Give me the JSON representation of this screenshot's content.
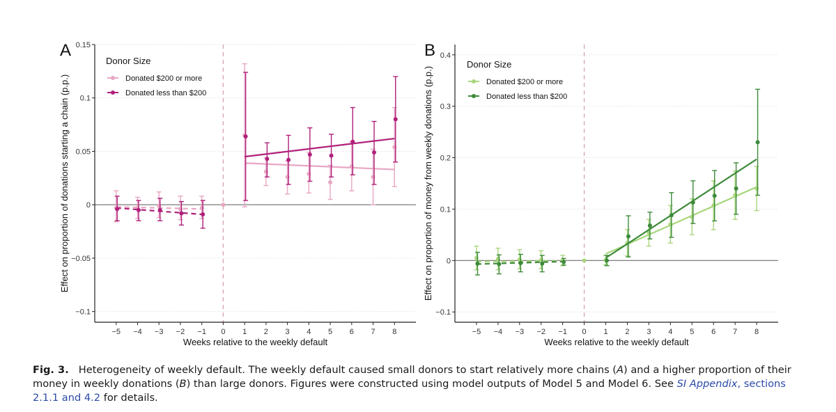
{
  "chart_data": [
    {
      "panel": "A",
      "type": "line",
      "legend_title": "Donor Size",
      "xlabel": "Weeks relative to the weekly default",
      "ylabel": "Effect on proportion of donations starting a chain (p.p.)",
      "x_ticks": [
        -5,
        -4,
        -3,
        -2,
        -1,
        0,
        1,
        2,
        3,
        4,
        5,
        6,
        7,
        8
      ],
      "y_ticks": [
        -0.1,
        -0.05,
        0,
        0.05,
        0.1,
        0.15
      ],
      "y_tick_labels": [
        "−0.1",
        "−0.05",
        "0",
        "0.05",
        "0.1",
        "0.15"
      ],
      "xlim": [
        -6,
        9
      ],
      "ylim": [
        -0.11,
        0.15
      ],
      "default_week": 0,
      "series": [
        {
          "name": "Donated $200 or more",
          "color": "#e8a6c4",
          "points": [
            {
              "x": -5,
              "y": -0.003,
              "lo": -0.016,
              "hi": 0.013
            },
            {
              "x": -4,
              "y": -0.003,
              "lo": -0.013,
              "hi": 0.007
            },
            {
              "x": -3,
              "y": -0.001,
              "lo": -0.012,
              "hi": 0.012
            },
            {
              "x": -2,
              "y": -0.004,
              "lo": -0.014,
              "hi": 0.008
            },
            {
              "x": -1,
              "y": -0.003,
              "lo": -0.013,
              "hi": 0.008
            },
            {
              "x": 0,
              "y": 0,
              "lo": 0,
              "hi": 0
            },
            {
              "x": 1,
              "y": 0.065,
              "lo": -0.002,
              "hi": 0.132
            },
            {
              "x": 2,
              "y": 0.031,
              "lo": 0.018,
              "hi": 0.044
            },
            {
              "x": 3,
              "y": 0.026,
              "lo": 0.01,
              "hi": 0.041
            },
            {
              "x": 4,
              "y": 0.029,
              "lo": 0.011,
              "hi": 0.049
            },
            {
              "x": 5,
              "y": 0.021,
              "lo": 0.005,
              "hi": 0.037
            },
            {
              "x": 6,
              "y": 0.036,
              "lo": 0.013,
              "hi": 0.059
            },
            {
              "x": 7,
              "y": 0.026,
              "lo": 0.0,
              "hi": 0.052
            },
            {
              "x": 8,
              "y": 0.054,
              "lo": 0.017,
              "hi": 0.091
            }
          ],
          "pre_trend": [
            [
              -5,
              -0.002
            ],
            [
              -1,
              -0.004
            ]
          ],
          "post_trend": [
            [
              1,
              0.039
            ],
            [
              8,
              0.033
            ]
          ]
        },
        {
          "name": "Donated less than $200",
          "color": "#b0207a",
          "points": [
            {
              "x": -5,
              "y": -0.004,
              "lo": -0.015,
              "hi": 0.008
            },
            {
              "x": -4,
              "y": -0.005,
              "lo": -0.015,
              "hi": 0.004
            },
            {
              "x": -3,
              "y": -0.005,
              "lo": -0.015,
              "hi": 0.006
            },
            {
              "x": -2,
              "y": -0.008,
              "lo": -0.019,
              "hi": 0.003
            },
            {
              "x": -1,
              "y": -0.009,
              "lo": -0.022,
              "hi": 0.004
            },
            {
              "x": 1,
              "y": 0.064,
              "lo": 0.004,
              "hi": 0.124
            },
            {
              "x": 2,
              "y": 0.043,
              "lo": 0.026,
              "hi": 0.058
            },
            {
              "x": 3,
              "y": 0.042,
              "lo": 0.019,
              "hi": 0.065
            },
            {
              "x": 4,
              "y": 0.047,
              "lo": 0.022,
              "hi": 0.072
            },
            {
              "x": 5,
              "y": 0.046,
              "lo": 0.026,
              "hi": 0.066
            },
            {
              "x": 6,
              "y": 0.059,
              "lo": 0.028,
              "hi": 0.091
            },
            {
              "x": 7,
              "y": 0.049,
              "lo": 0.019,
              "hi": 0.078
            },
            {
              "x": 8,
              "y": 0.08,
              "lo": 0.04,
              "hi": 0.12
            }
          ],
          "pre_trend": [
            [
              -5,
              -0.003
            ],
            [
              -1,
              -0.009
            ]
          ],
          "post_trend": [
            [
              1,
              0.045
            ],
            [
              8,
              0.062
            ]
          ]
        }
      ]
    },
    {
      "panel": "B",
      "type": "line",
      "legend_title": "Donor Size",
      "xlabel": "Weeks relative to the weekly default",
      "ylabel": "Effect on proportion of money from weekly donations (p.p.)",
      "x_ticks": [
        -5,
        -4,
        -3,
        -2,
        -1,
        0,
        1,
        2,
        3,
        4,
        5,
        6,
        7,
        8
      ],
      "y_ticks": [
        -0.1,
        0,
        0.1,
        0.2,
        0.3,
        0.4
      ],
      "y_tick_labels": [
        "−0.1",
        "0",
        "0.1",
        "0.2",
        "0.3",
        "0.4"
      ],
      "xlim": [
        -6,
        9
      ],
      "ylim": [
        -0.12,
        0.42
      ],
      "default_week": 0,
      "series": [
        {
          "name": "Donated $200 or more",
          "color": "#a8d67c",
          "points": [
            {
              "x": -5,
              "y": 0.005,
              "lo": -0.018,
              "hi": 0.028
            },
            {
              "x": -4,
              "y": 0.003,
              "lo": -0.018,
              "hi": 0.024
            },
            {
              "x": -3,
              "y": 0.002,
              "lo": -0.016,
              "hi": 0.021
            },
            {
              "x": -2,
              "y": 0.001,
              "lo": -0.016,
              "hi": 0.019
            },
            {
              "x": -1,
              "y": 0.0,
              "lo": -0.01,
              "hi": 0.01
            },
            {
              "x": 0,
              "y": 0,
              "lo": 0,
              "hi": 0
            },
            {
              "x": 1,
              "y": 0.001,
              "lo": -0.008,
              "hi": 0.01
            },
            {
              "x": 2,
              "y": 0.034,
              "lo": 0.009,
              "hi": 0.06
            },
            {
              "x": 3,
              "y": 0.054,
              "lo": 0.028,
              "hi": 0.08
            },
            {
              "x": 4,
              "y": 0.07,
              "lo": 0.034,
              "hi": 0.107
            },
            {
              "x": 5,
              "y": 0.085,
              "lo": 0.05,
              "hi": 0.12
            },
            {
              "x": 6,
              "y": 0.107,
              "lo": 0.06,
              "hi": 0.155
            },
            {
              "x": 7,
              "y": 0.127,
              "lo": 0.08,
              "hi": 0.174
            },
            {
              "x": 8,
              "y": 0.14,
              "lo": 0.097,
              "hi": 0.183
            }
          ],
          "pre_trend": [
            [
              -5,
              -0.002
            ],
            [
              -1,
              -0.001
            ]
          ],
          "post_trend": [
            [
              1,
              0.013
            ],
            [
              8,
              0.143
            ]
          ]
        },
        {
          "name": "Donated less than $200",
          "color": "#3d8a3a",
          "points": [
            {
              "x": -5,
              "y": -0.006,
              "lo": -0.028,
              "hi": 0.016
            },
            {
              "x": -4,
              "y": -0.007,
              "lo": -0.026,
              "hi": 0.011
            },
            {
              "x": -3,
              "y": -0.005,
              "lo": -0.022,
              "hi": 0.012
            },
            {
              "x": -2,
              "y": -0.006,
              "lo": -0.022,
              "hi": 0.01
            },
            {
              "x": -1,
              "y": -0.003,
              "lo": -0.009,
              "hi": 0.004
            },
            {
              "x": 1,
              "y": 0.0,
              "lo": -0.01,
              "hi": 0.01
            },
            {
              "x": 2,
              "y": 0.047,
              "lo": 0.007,
              "hi": 0.087
            },
            {
              "x": 3,
              "y": 0.068,
              "lo": 0.042,
              "hi": 0.094
            },
            {
              "x": 4,
              "y": 0.088,
              "lo": 0.045,
              "hi": 0.132
            },
            {
              "x": 5,
              "y": 0.113,
              "lo": 0.072,
              "hi": 0.155
            },
            {
              "x": 6,
              "y": 0.126,
              "lo": 0.077,
              "hi": 0.175
            },
            {
              "x": 7,
              "y": 0.14,
              "lo": 0.09,
              "hi": 0.19
            },
            {
              "x": 8,
              "y": 0.23,
              "lo": 0.127,
              "hi": 0.333
            }
          ],
          "pre_trend": [
            [
              -5,
              -0.007
            ],
            [
              -1,
              -0.002
            ]
          ],
          "post_trend": [
            [
              1,
              0.005
            ],
            [
              8,
              0.197
            ]
          ]
        }
      ]
    }
  ],
  "caption": {
    "label": "Fig. 3.",
    "text_1": "Heterogeneity of weekly default. The weekly default caused small donors to start relatively more chains (",
    "ref_a": "A",
    "text_2": ") and a higher proportion of their money in weekly donations (",
    "ref_b": "B",
    "text_3": ") than large donors. Figures were constructed using model outputs of Model 5 and Model 6. See ",
    "link_1": "SI Appendix",
    "link_2": ", sections 2.1.1 and 4.2",
    "text_4": " for details."
  }
}
